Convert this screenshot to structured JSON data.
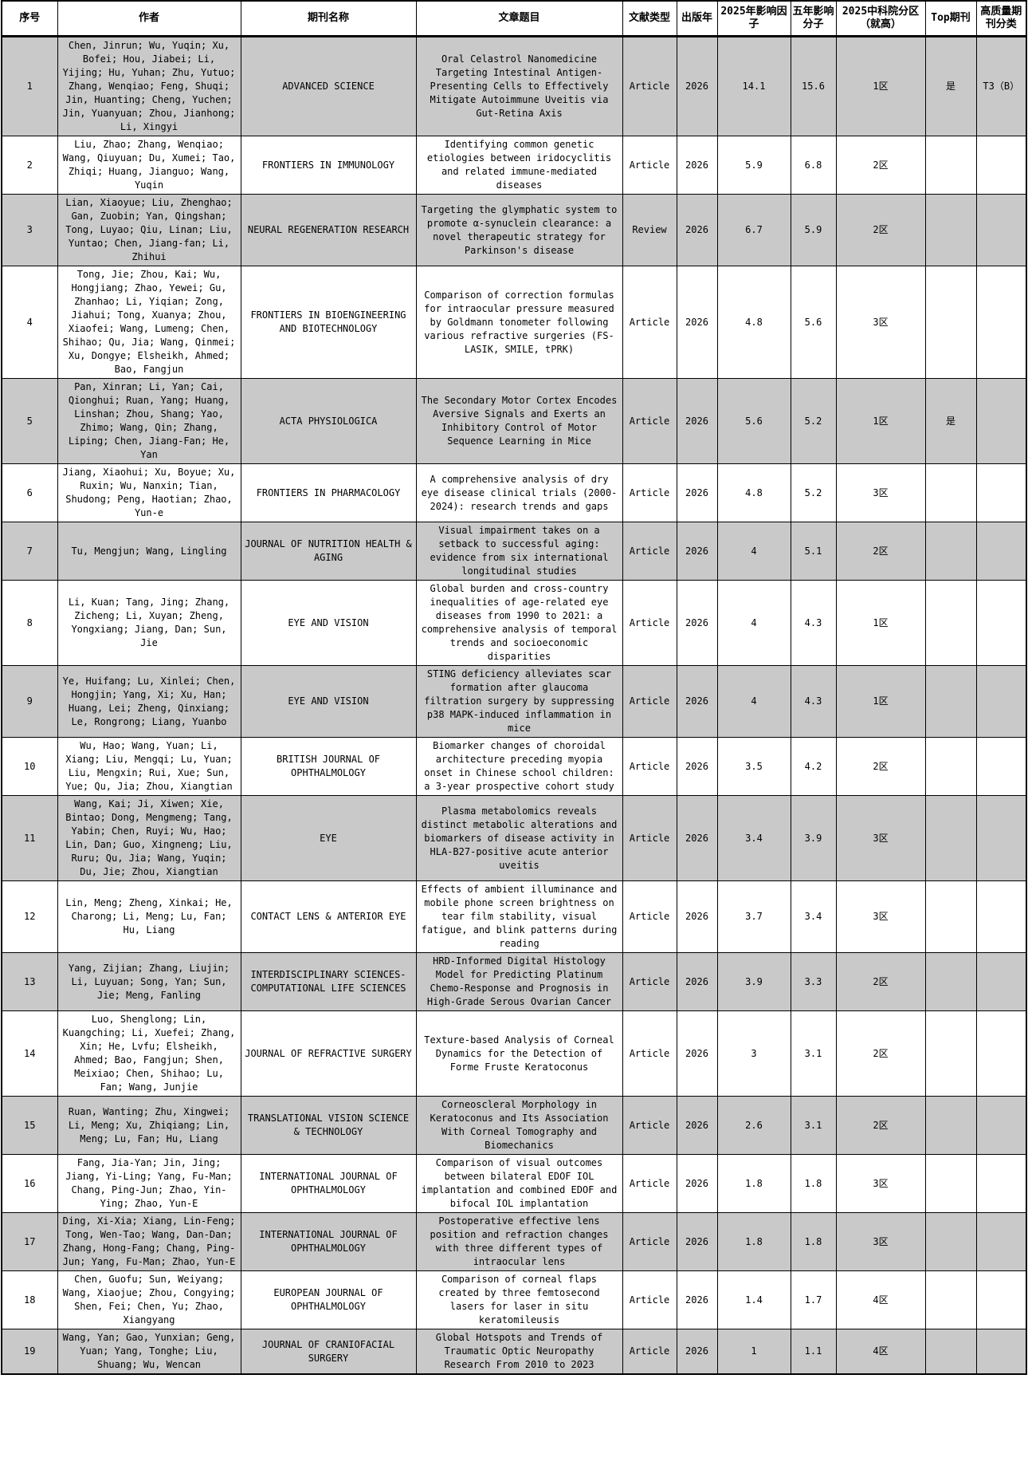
{
  "colors": {
    "row_stripe": "#c9c9c9",
    "border": "#000000",
    "background": "#ffffff"
  },
  "table": {
    "headers": [
      {
        "key": "no",
        "label": "序号"
      },
      {
        "key": "authors",
        "label": "作者"
      },
      {
        "key": "journal",
        "label": "期刊名称"
      },
      {
        "key": "title",
        "label": "文章题目"
      },
      {
        "key": "doc_type",
        "label": "文献类型"
      },
      {
        "key": "year",
        "label": "出版年"
      },
      {
        "key": "if_2025",
        "label": "2025年影响因子"
      },
      {
        "key": "if_5y",
        "label": "五年影响分子"
      },
      {
        "key": "cas_division",
        "label": "2025中科院分区（就高）"
      },
      {
        "key": "top_journal",
        "label": "Top期刊"
      },
      {
        "key": "quality_class",
        "label": "高质量期刊分类"
      }
    ],
    "rows": [
      {
        "no": "1",
        "authors": "Chen, Jinrun; Wu, Yuqin; Xu, Bofei; Hou, Jiabei; Li, Yijing; Hu, Yuhan; Zhu, Yutuo; Zhang, Wenqiao; Feng, Shuqi; Jin, Huanting; Cheng, Yuchen; Jin, Yuanyuan; Zhou, Jianhong; Li, Xingyi",
        "journal": "ADVANCED SCIENCE",
        "title": "Oral Celastrol Nanomedicine Targeting Intestinal Antigen-Presenting Cells to Effectively Mitigate Autoimmune Uveitis via Gut-Retina Axis",
        "doc_type": "Article",
        "year": "2026",
        "if_2025": "14.1",
        "if_5y": "15.6",
        "cas_division": "1区",
        "top_journal": "是",
        "quality_class": "T3（B）"
      },
      {
        "no": "2",
        "authors": "Liu, Zhao; Zhang, Wenqiao; Wang, Qiuyuan; Du, Xumei; Tao, Zhiqi; Huang, Jianguo; Wang, Yuqin",
        "journal": "FRONTIERS IN IMMUNOLOGY",
        "title": "Identifying common genetic etiologies between iridocyclitis and related immune-mediated diseases",
        "doc_type": "Article",
        "year": "2026",
        "if_2025": "5.9",
        "if_5y": "6.8",
        "cas_division": "2区",
        "top_journal": "",
        "quality_class": ""
      },
      {
        "no": "3",
        "authors": "Lian, Xiaoyue; Liu, Zhenghao; Gan, Zuobin; Yan, Qingshan; Tong, Luyao; Qiu, Linan; Liu, Yuntao; Chen, Jiang-fan; Li, Zhihui",
        "journal": "NEURAL REGENERATION RESEARCH",
        "title": "Targeting the glymphatic system to promote α-synuclein clearance: a novel therapeutic strategy for Parkinson's disease",
        "doc_type": "Review",
        "year": "2026",
        "if_2025": "6.7",
        "if_5y": "5.9",
        "cas_division": "2区",
        "top_journal": "",
        "quality_class": ""
      },
      {
        "no": "4",
        "authors": "Tong, Jie; Zhou, Kai; Wu, Hongjiang; Zhao, Yewei; Gu, Zhanhao; Li, Yiqian; Zong, Jiahui; Tong, Xuanya; Zhou, Xiaofei; Wang, Lumeng; Chen, Shihao; Qu, Jia; Wang, Qinmei; Xu, Dongye; Elsheikh, Ahmed; Bao, Fangjun",
        "journal": "FRONTIERS IN BIOENGINEERING AND BIOTECHNOLOGY",
        "title": "Comparison of correction formulas for intraocular pressure measured by Goldmann tonometer following various refractive surgeries (FS-LASIK, SMILE, tPRK)",
        "doc_type": "Article",
        "year": "2026",
        "if_2025": "4.8",
        "if_5y": "5.6",
        "cas_division": "3区",
        "top_journal": "",
        "quality_class": ""
      },
      {
        "no": "5",
        "authors": "Pan, Xinran; Li, Yan; Cai, Qionghui; Ruan, Yang; Huang, Linshan; Zhou, Shang; Yao, Zhimo; Wang, Qin; Zhang, Liping; Chen, Jiang-Fan; He, Yan",
        "journal": "ACTA PHYSIOLOGICA",
        "title": "The Secondary Motor Cortex Encodes Aversive Signals and Exerts an Inhibitory Control of Motor Sequence Learning in Mice",
        "doc_type": "Article",
        "year": "2026",
        "if_2025": "5.6",
        "if_5y": "5.2",
        "cas_division": "1区",
        "top_journal": "是",
        "quality_class": ""
      },
      {
        "no": "6",
        "authors": "Jiang, Xiaohui; Xu, Boyue; Xu, Ruxin; Wu, Nanxin; Tian, Shudong; Peng, Haotian; Zhao, Yun-e",
        "journal": "FRONTIERS IN PHARMACOLOGY",
        "title": "A comprehensive analysis of dry eye disease clinical trials (2000-2024): research trends and gaps",
        "doc_type": "Article",
        "year": "2026",
        "if_2025": "4.8",
        "if_5y": "5.2",
        "cas_division": "3区",
        "top_journal": "",
        "quality_class": ""
      },
      {
        "no": "7",
        "authors": "Tu, Mengjun; Wang, Lingling",
        "journal": "JOURNAL OF NUTRITION HEALTH & AGING",
        "title": "Visual impairment takes on a setback to successful aging: evidence from six international longitudinal studies",
        "doc_type": "Article",
        "year": "2026",
        "if_2025": "4",
        "if_5y": "5.1",
        "cas_division": "2区",
        "top_journal": "",
        "quality_class": ""
      },
      {
        "no": "8",
        "authors": "Li, Kuan; Tang, Jing; Zhang, Zicheng; Li, Xuyan; Zheng, Yongxiang; Jiang, Dan; Sun, Jie",
        "journal": "EYE AND VISION",
        "title": "Global burden and cross-country inequalities of age-related eye diseases from 1990 to 2021: a comprehensive analysis of temporal trends and socioeconomic disparities",
        "doc_type": "Article",
        "year": "2026",
        "if_2025": "4",
        "if_5y": "4.3",
        "cas_division": "1区",
        "top_journal": "",
        "quality_class": ""
      },
      {
        "no": "9",
        "authors": "Ye, Huifang; Lu, Xinlei; Chen, Hongjin; Yang, Xi; Xu, Han; Huang, Lei; Zheng, Qinxiang; Le, Rongrong; Liang, Yuanbo",
        "journal": "EYE AND VISION",
        "title": "STING deficiency alleviates scar formation after glaucoma filtration surgery by suppressing p38 MAPK-induced inflammation in mice",
        "doc_type": "Article",
        "year": "2026",
        "if_2025": "4",
        "if_5y": "4.3",
        "cas_division": "1区",
        "top_journal": "",
        "quality_class": ""
      },
      {
        "no": "10",
        "authors": "Wu, Hao; Wang, Yuan; Li, Xiang; Liu, Mengqi; Lu, Yuan; Liu, Mengxin; Rui, Xue; Sun, Yue; Qu, Jia; Zhou, Xiangtian",
        "journal": "BRITISH JOURNAL OF OPHTHALMOLOGY",
        "title": "Biomarker changes of choroidal architecture preceding myopia onset in Chinese school children: a 3-year prospective cohort study",
        "doc_type": "Article",
        "year": "2026",
        "if_2025": "3.5",
        "if_5y": "4.2",
        "cas_division": "2区",
        "top_journal": "",
        "quality_class": ""
      },
      {
        "no": "11",
        "authors": "Wang, Kai; Ji, Xiwen; Xie, Bintao; Dong, Mengmeng; Tang, Yabin; Chen, Ruyi; Wu, Hao; Lin, Dan; Guo, Xingneng; Liu, Ruru; Qu, Jia; Wang, Yuqin; Du, Jie; Zhou, Xiangtian",
        "journal": "EYE",
        "title": "Plasma metabolomics reveals distinct metabolic alterations and biomarkers of disease activity in HLA-B27-positive acute anterior uveitis",
        "doc_type": "Article",
        "year": "2026",
        "if_2025": "3.4",
        "if_5y": "3.9",
        "cas_division": "3区",
        "top_journal": "",
        "quality_class": ""
      },
      {
        "no": "12",
        "authors": "Lin, Meng; Zheng, Xinkai; He, Charong; Li, Meng; Lu, Fan; Hu, Liang",
        "journal": "CONTACT LENS & ANTERIOR EYE",
        "title": "Effects of ambient illuminance and mobile phone screen brightness on tear film stability, visual fatigue, and blink patterns during reading",
        "doc_type": "Article",
        "year": "2026",
        "if_2025": "3.7",
        "if_5y": "3.4",
        "cas_division": "3区",
        "top_journal": "",
        "quality_class": ""
      },
      {
        "no": "13",
        "authors": "Yang, Zijian; Zhang, Liujin; Li, Luyuan; Song, Yan; Sun, Jie; Meng, Fanling",
        "journal": "INTERDISCIPLINARY SCIENCES-COMPUTATIONAL LIFE SCIENCES",
        "title": "HRD-Informed Digital Histology Model for Predicting Platinum Chemo-Response and Prognosis in High-Grade Serous Ovarian Cancer",
        "doc_type": "Article",
        "year": "2026",
        "if_2025": "3.9",
        "if_5y": "3.3",
        "cas_division": "2区",
        "top_journal": "",
        "quality_class": ""
      },
      {
        "no": "14",
        "authors": "Luo, Shenglong; Lin, Kuangching; Li, Xuefei; Zhang, Xin; He, Lvfu; Elsheikh, Ahmed; Bao, Fangjun; Shen, Meixiao; Chen, Shihao; Lu, Fan; Wang, Junjie",
        "journal": "JOURNAL OF REFRACTIVE SURGERY",
        "title": "Texture-based Analysis of Corneal Dynamics for the Detection of Forme Fruste Keratoconus",
        "doc_type": "Article",
        "year": "2026",
        "if_2025": "3",
        "if_5y": "3.1",
        "cas_division": "2区",
        "top_journal": "",
        "quality_class": ""
      },
      {
        "no": "15",
        "authors": "Ruan, Wanting; Zhu, Xingwei; Li, Meng; Xu, Zhiqiang; Lin, Meng; Lu, Fan; Hu, Liang",
        "journal": "TRANSLATIONAL VISION SCIENCE & TECHNOLOGY",
        "title": "Corneoscleral Morphology in Keratoconus and Its Association With Corneal Tomography and Biomechanics",
        "doc_type": "Article",
        "year": "2026",
        "if_2025": "2.6",
        "if_5y": "3.1",
        "cas_division": "2区",
        "top_journal": "",
        "quality_class": ""
      },
      {
        "no": "16",
        "authors": "Fang, Jia-Yan; Jin, Jing; Jiang, Yi-Ling; Yang, Fu-Man; Chang, Ping-Jun; Zhao, Yin-Ying; Zhao, Yun-E",
        "journal": "INTERNATIONAL JOURNAL OF OPHTHALMOLOGY",
        "title": "Comparison of visual outcomes between bilateral EDOF IOL implantation and combined EDOF and bifocal IOL implantation",
        "doc_type": "Article",
        "year": "2026",
        "if_2025": "1.8",
        "if_5y": "1.8",
        "cas_division": "3区",
        "top_journal": "",
        "quality_class": ""
      },
      {
        "no": "17",
        "authors": "Ding, Xi-Xia; Xiang, Lin-Feng; Tong, Wen-Tao; Wang, Dan-Dan; Zhang, Hong-Fang; Chang, Ping-Jun; Yang, Fu-Man; Zhao, Yun-E",
        "journal": "INTERNATIONAL JOURNAL OF OPHTHALMOLOGY",
        "title": "Postoperative effective lens position and refraction changes with three different types of intraocular lens",
        "doc_type": "Article",
        "year": "2026",
        "if_2025": "1.8",
        "if_5y": "1.8",
        "cas_division": "3区",
        "top_journal": "",
        "quality_class": ""
      },
      {
        "no": "18",
        "authors": "Chen, Guofu; Sun, Weiyang; Wang, Xiaojue; Zhou, Congying; Shen, Fei; Chen, Yu; Zhao, Xiangyang",
        "journal": "EUROPEAN JOURNAL OF OPHTHALMOLOGY",
        "title": "Comparison of corneal flaps created by three femtosecond lasers for laser in situ keratomileusis",
        "doc_type": "Article",
        "year": "2026",
        "if_2025": "1.4",
        "if_5y": "1.7",
        "cas_division": "4区",
        "top_journal": "",
        "quality_class": ""
      },
      {
        "no": "19",
        "authors": "Wang, Yan; Gao, Yunxian; Geng, Yuan; Yang, Tonghe; Liu, Shuang; Wu, Wencan",
        "journal": "JOURNAL OF CRANIOFACIAL SURGERY",
        "title": "Global Hotspots and Trends of Traumatic Optic Neuropathy Research From 2010 to 2023",
        "doc_type": "Article",
        "year": "2026",
        "if_2025": "1",
        "if_5y": "1.1",
        "cas_division": "4区",
        "top_journal": "",
        "quality_class": ""
      }
    ]
  }
}
